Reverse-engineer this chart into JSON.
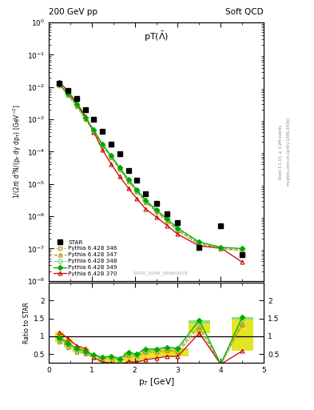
{
  "title_top_left": "200 GeV pp",
  "title_top_right": "Soft QCD",
  "plot_title": "pT($\\bar{\\Lambda}$)",
  "ylabel_main": "1/(2$\\pi$) d$^2$N/(p$_T$ dy dp$_T$) [GeV$^{-2}$]",
  "ylabel_ratio": "Ratio to STAR",
  "xlabel": "p$_T$ [GeV]",
  "watermark": "STAR_2006_S6860818",
  "right_label_top": "Rivet 3.1.10, ≥ 3.2M events",
  "right_label_bot": "mcplots.cern.ch [arXiv:1306.3436]",
  "star_x": [
    0.25,
    0.45,
    0.65,
    0.85,
    1.05,
    1.25,
    1.45,
    1.65,
    1.85,
    2.05,
    2.25,
    2.5,
    2.75,
    3.0,
    3.5,
    4.0,
    4.5
  ],
  "star_y": [
    0.013,
    0.008,
    0.0045,
    0.002,
    0.001,
    0.00042,
    0.00017,
    8.5e-05,
    2.6e-05,
    1.3e-05,
    5e-06,
    2.5e-06,
    1.2e-06,
    6.5e-07,
    1.1e-07,
    5e-07,
    6.5e-08
  ],
  "p346_x": [
    0.25,
    0.45,
    0.65,
    0.85,
    1.05,
    1.25,
    1.45,
    1.65,
    1.85,
    2.05,
    2.25,
    2.5,
    2.75,
    3.0,
    3.5,
    4.0,
    4.5
  ],
  "p346_y": [
    0.011,
    0.0055,
    0.0025,
    0.001,
    0.0004,
    0.00015,
    6.5e-05,
    2.8e-05,
    1.2e-05,
    5.5e-06,
    2.7e-06,
    1.35e-06,
    7e-07,
    3.5e-07,
    1.3e-07,
    9.5e-08,
    8.5e-08
  ],
  "p347_x": [
    0.25,
    0.45,
    0.65,
    0.85,
    1.05,
    1.25,
    1.45,
    1.65,
    1.85,
    2.05,
    2.25,
    2.5,
    2.75,
    3.0,
    3.5,
    4.0,
    4.5
  ],
  "p347_y": [
    0.0115,
    0.0058,
    0.0027,
    0.00105,
    0.00042,
    0.000155,
    6.8e-05,
    2.9e-05,
    1.25e-05,
    5.8e-06,
    2.85e-06,
    1.42e-06,
    7.3e-07,
    3.7e-07,
    1.4e-07,
    1e-07,
    8.8e-08
  ],
  "p348_x": [
    0.25,
    0.45,
    0.65,
    0.85,
    1.05,
    1.25,
    1.45,
    1.65,
    1.85,
    2.05,
    2.25,
    2.5,
    2.75,
    3.0,
    3.5,
    4.0,
    4.5
  ],
  "p348_y": [
    0.012,
    0.006,
    0.0028,
    0.0011,
    0.00045,
    0.00016,
    7e-05,
    3e-05,
    1.3e-05,
    6e-06,
    3e-06,
    1.5e-06,
    7.8e-07,
    4e-07,
    1.5e-07,
    1.05e-07,
    9.5e-08
  ],
  "p349_x": [
    0.25,
    0.45,
    0.65,
    0.85,
    1.05,
    1.25,
    1.45,
    1.65,
    1.85,
    2.05,
    2.25,
    2.5,
    2.75,
    3.0,
    3.5,
    4.0,
    4.5
  ],
  "p349_y": [
    0.0125,
    0.0063,
    0.003,
    0.00115,
    0.00047,
    0.00017,
    7.5e-05,
    3.2e-05,
    1.4e-05,
    6.5e-06,
    3.2e-06,
    1.6e-06,
    8.3e-07,
    4.3e-07,
    1.6e-07,
    1.1e-07,
    1e-07
  ],
  "p370_x": [
    0.25,
    0.45,
    0.65,
    0.85,
    1.05,
    1.25,
    1.45,
    1.65,
    1.85,
    2.05,
    2.25,
    2.5,
    2.75,
    3.0,
    3.5,
    4.0,
    4.5
  ],
  "p370_y": [
    0.0145,
    0.0075,
    0.0033,
    0.0013,
    0.0004,
    0.000115,
    4.2e-05,
    1.7e-05,
    7.5e-06,
    3.5e-06,
    1.7e-06,
    9.5e-07,
    5.2e-07,
    2.8e-07,
    1.2e-07,
    1.05e-07,
    3.8e-08
  ],
  "colors": {
    "star": "#000000",
    "p346": "#b8960c",
    "p347": "#b8960c",
    "p348": "#80d080",
    "p349": "#00aa00",
    "p370": "#cc0000",
    "band_yellow": "#e0e000",
    "band_green": "#80e080"
  },
  "xlim": [
    0.0,
    5.0
  ],
  "ylim_main": [
    1e-08,
    1.0
  ],
  "ratio_yticks": [
    0.5,
    1.0,
    1.5,
    2.0
  ],
  "ratio_ylim": [
    0.25,
    2.5
  ]
}
